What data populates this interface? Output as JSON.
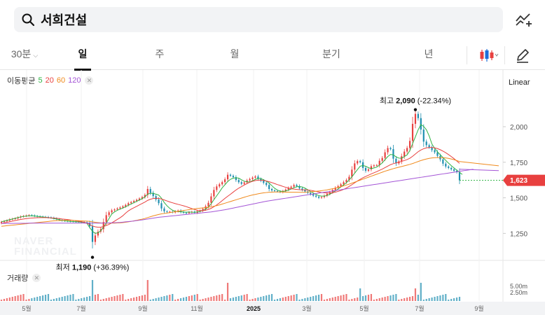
{
  "search": {
    "query": "서희건설"
  },
  "tabs": [
    {
      "label": "30분",
      "has_chevron": true
    },
    {
      "label": "일",
      "active": true
    },
    {
      "label": "주"
    },
    {
      "label": "월"
    },
    {
      "label": "분기"
    },
    {
      "label": "년"
    }
  ],
  "moving_average": {
    "label": "이동평균",
    "periods": [
      {
        "value": "5",
        "color": "#2fb344"
      },
      {
        "value": "20",
        "color": "#e8403f"
      },
      {
        "value": "60",
        "color": "#f08a1c"
      },
      {
        "value": "120",
        "color": "#a455d6"
      }
    ]
  },
  "scale_mode": "Linear",
  "volume": {
    "label": "거래량",
    "axis_labels": [
      "5.00m",
      "2.50m"
    ]
  },
  "watermark": [
    "NAVER",
    "FINANCIAL"
  ],
  "chart_data": {
    "type": "candlestick",
    "x_ticks": [
      "5월",
      "7월",
      "9월",
      "11월",
      "2025",
      "3월",
      "5월",
      "7월",
      "9월"
    ],
    "y_ticks": [
      2000,
      1750,
      1500,
      1250
    ],
    "y_tick_labels": [
      "2,000",
      "1,750",
      "1,500",
      "1,250"
    ],
    "ylim": [
      1060,
      2300
    ],
    "current_price": 1623,
    "current_price_label": "1,623",
    "high": {
      "label": "최고",
      "value": "2,090",
      "change": "(-22.34%)",
      "price": 2090
    },
    "low": {
      "label": "최저",
      "value": "1,190",
      "change": "(+36.39%)",
      "price": 1190
    },
    "colors": {
      "up": "#e8403f",
      "down": "#1e8fb0",
      "current": "#e8403f"
    },
    "close": [
      1330,
      1335,
      1340,
      1348,
      1352,
      1355,
      1362,
      1368,
      1372,
      1375,
      1378,
      1376,
      1372,
      1370,
      1368,
      1366,
      1365,
      1362,
      1360,
      1355,
      1350,
      1345,
      1340,
      1338,
      1336,
      1335,
      1334,
      1333,
      1332,
      1330,
      1328,
      1325,
      1300,
      1190,
      1235,
      1262,
      1280,
      1330,
      1378,
      1398,
      1412,
      1418,
      1425,
      1432,
      1440,
      1450,
      1462,
      1470,
      1478,
      1486,
      1495,
      1505,
      1520,
      1562,
      1535,
      1512,
      1488,
      1462,
      1425,
      1405,
      1400,
      1402,
      1398,
      1405,
      1410,
      1400,
      1395,
      1392,
      1398,
      1402,
      1395,
      1405,
      1410,
      1422,
      1440,
      1465,
      1510,
      1555,
      1580,
      1595,
      1610,
      1630,
      1662,
      1655,
      1645,
      1625,
      1610,
      1598,
      1608,
      1622,
      1632,
      1642,
      1650,
      1632,
      1620,
      1605,
      1590,
      1562,
      1552,
      1548,
      1545,
      1540,
      1548,
      1558,
      1570,
      1578,
      1590,
      1582,
      1566,
      1555,
      1545,
      1535,
      1525,
      1515,
      1508,
      1500,
      1505,
      1515,
      1528,
      1540,
      1555,
      1570,
      1582,
      1595,
      1610,
      1625,
      1648,
      1698,
      1742,
      1758,
      1750,
      1710,
      1690,
      1700,
      1722,
      1728,
      1730,
      1760,
      1780,
      1820,
      1850,
      1842,
      1775,
      1742,
      1756,
      1792,
      1825,
      1850,
      1900,
      2020,
      2090,
      2060,
      1980,
      1895,
      1870,
      1855,
      1835,
      1820,
      1795,
      1770,
      1740,
      1720,
      1710,
      1700,
      1690,
      1680,
      1623
    ],
    "ma5": [
      1332,
      1336,
      1341,
      1346,
      1351,
      1356,
      1361,
      1366,
      1369,
      1371,
      1373,
      1373,
      1372,
      1370,
      1367,
      1365,
      1363,
      1361,
      1358,
      1354,
      1350,
      1346,
      1341,
      1338,
      1336,
      1334,
      1333,
      1332,
      1331,
      1329,
      1327,
      1320,
      1290,
      1265,
      1250,
      1254,
      1268,
      1295,
      1322,
      1354,
      1386,
      1401,
      1412,
      1420,
      1428,
      1437,
      1447,
      1456,
      1466,
      1475,
      1485,
      1494,
      1506,
      1526,
      1532,
      1531,
      1526,
      1519,
      1497,
      1467,
      1444,
      1426,
      1413,
      1405,
      1403,
      1402,
      1400,
      1399,
      1400,
      1398,
      1399,
      1401,
      1404,
      1411,
      1420,
      1435,
      1458,
      1487,
      1514,
      1541,
      1570,
      1592,
      1614,
      1630,
      1638,
      1641,
      1638,
      1627,
      1617,
      1612,
      1612,
      1620,
      1629,
      1637,
      1636,
      1627,
      1617,
      1604,
      1585,
      1567,
      1555,
      1547,
      1545,
      1548,
      1554,
      1562,
      1571,
      1578,
      1580,
      1576,
      1568,
      1557,
      1545,
      1534,
      1524,
      1515,
      1512,
      1512,
      1516,
      1525,
      1537,
      1549,
      1562,
      1577,
      1591,
      1606,
      1625,
      1647,
      1673,
      1698,
      1722,
      1727,
      1722,
      1712,
      1705,
      1710,
      1716,
      1730,
      1745,
      1768,
      1790,
      1805,
      1802,
      1788,
      1779,
      1778,
      1790,
      1802,
      1832,
      1881,
      1929,
      1978,
      2015,
      2002,
      1978,
      1935,
      1878,
      1848,
      1823,
      1803,
      1783,
      1763,
      1744,
      1726,
      1710,
      1694,
      1680,
      1664
    ],
    "ma20": [
      1320,
      1324,
      1328,
      1332,
      1336,
      1340,
      1344,
      1348,
      1351,
      1354,
      1356,
      1358,
      1359,
      1360,
      1361,
      1361,
      1361,
      1360,
      1359,
      1358,
      1356,
      1354,
      1351,
      1349,
      1347,
      1344,
      1341,
      1338,
      1335,
      1332,
      1328,
      1322,
      1312,
      1302,
      1296,
      1293,
      1293,
      1298,
      1305,
      1313,
      1324,
      1336,
      1348,
      1360,
      1374,
      1392,
      1408,
      1420,
      1430,
      1440,
      1450,
      1460,
      1470,
      1482,
      1490,
      1495,
      1497,
      1496,
      1491,
      1485,
      1478,
      1471,
      1465,
      1459,
      1454,
      1449,
      1444,
      1438,
      1431,
      1424,
      1418,
      1412,
      1410,
      1410,
      1413,
      1418,
      1426,
      1437,
      1450,
      1464,
      1480,
      1496,
      1511,
      1525,
      1540,
      1555,
      1568,
      1579,
      1590,
      1600,
      1609,
      1616,
      1621,
      1624,
      1624,
      1622,
      1618,
      1613,
      1607,
      1600,
      1593,
      1587,
      1580,
      1574,
      1569,
      1564,
      1561,
      1559,
      1557,
      1556,
      1556,
      1555,
      1553,
      1549,
      1545,
      1541,
      1537,
      1535,
      1534,
      1534,
      1536,
      1540,
      1545,
      1551,
      1559,
      1569,
      1580,
      1592,
      1605,
      1618,
      1630,
      1641,
      1650,
      1659,
      1668,
      1676,
      1684,
      1693,
      1702,
      1712,
      1723,
      1733,
      1740,
      1745,
      1750,
      1756,
      1762,
      1769,
      1778,
      1792,
      1808,
      1824,
      1836,
      1845,
      1851,
      1854,
      1854,
      1851,
      1846,
      1838,
      1828,
      1817,
      1804,
      1790,
      1775,
      1759,
      1742
    ],
    "ma60": [
      1300,
      1302,
      1304,
      1306,
      1308,
      1310,
      1312,
      1314,
      1316,
      1318,
      1320,
      1322,
      1324,
      1326,
      1328,
      1330,
      1332,
      1334,
      1336,
      1338,
      1339,
      1340,
      1341,
      1342,
      1342,
      1342,
      1341,
      1340,
      1339,
      1338,
      1337,
      1336,
      1334,
      1331,
      1328,
      1326,
      1324,
      1323,
      1322,
      1322,
      1322,
      1322,
      1323,
      1324,
      1326,
      1328,
      1331,
      1334,
      1338,
      1342,
      1346,
      1350,
      1355,
      1361,
      1367,
      1373,
      1378,
      1383,
      1387,
      1390,
      1393,
      1396,
      1399,
      1402,
      1405,
      1408,
      1411,
      1414,
      1417,
      1420,
      1423,
      1425,
      1427,
      1429,
      1431,
      1434,
      1437,
      1441,
      1445,
      1450,
      1456,
      1462,
      1468,
      1474,
      1480,
      1486,
      1492,
      1498,
      1504,
      1510,
      1515,
      1520,
      1524,
      1528,
      1532,
      1535,
      1537,
      1539,
      1540,
      1541,
      1541,
      1541,
      1541,
      1540,
      1540,
      1539,
      1539,
      1539,
      1539,
      1539,
      1540,
      1541,
      1542,
      1544,
      1546,
      1548,
      1550,
      1553,
      1556,
      1560,
      1564,
      1568,
      1573,
      1578,
      1584,
      1590,
      1596,
      1603,
      1610,
      1617,
      1624,
      1631,
      1638,
      1645,
      1652,
      1659,
      1666,
      1673,
      1680,
      1687,
      1693,
      1699,
      1705,
      1710,
      1715,
      1720,
      1725,
      1730,
      1735,
      1741,
      1748,
      1755,
      1762,
      1768,
      1773,
      1777,
      1780,
      1782,
      1783,
      1783,
      1782,
      1780,
      1777,
      1773,
      1768,
      1762,
      1755
    ],
    "ma120": [
      1320,
      1320,
      1320,
      1320,
      1320,
      1321,
      1321,
      1321,
      1321,
      1321,
      1322,
      1322,
      1322,
      1322,
      1322,
      1322,
      1322,
      1322,
      1322,
      1322,
      1322,
      1322,
      1322,
      1322,
      1322,
      1322,
      1322,
      1322,
      1322,
      1322,
      1322,
      1322,
      1322,
      1322,
      1322,
      1322,
      1322,
      1322,
      1323,
      1323,
      1324,
      1325,
      1326,
      1327,
      1329,
      1331,
      1333,
      1335,
      1337,
      1340,
      1342,
      1345,
      1348,
      1351,
      1354,
      1357,
      1360,
      1363,
      1365,
      1367,
      1369,
      1371,
      1373,
      1375,
      1377,
      1379,
      1381,
      1383,
      1385,
      1387,
      1389,
      1391,
      1393,
      1395,
      1397,
      1399,
      1401,
      1404,
      1407,
      1410,
      1413,
      1416,
      1420,
      1424,
      1428,
      1432,
      1436,
      1440,
      1444,
      1448,
      1452,
      1456,
      1460,
      1464,
      1468,
      1472,
      1476,
      1479,
      1482,
      1485,
      1488,
      1491,
      1494,
      1497,
      1500,
      1503,
      1506,
      1509,
      1512,
      1515,
      1518,
      1521,
      1524,
      1527,
      1530,
      1533,
      1536,
      1539,
      1542,
      1545,
      1548,
      1551,
      1554,
      1557,
      1560,
      1563,
      1566,
      1569,
      1572,
      1575,
      1578,
      1581,
      1584,
      1587,
      1590,
      1593,
      1596,
      1599,
      1602,
      1605,
      1608,
      1611,
      1614,
      1617,
      1620,
      1623,
      1626,
      1629,
      1632,
      1635,
      1638,
      1641,
      1644,
      1647,
      1650,
      1653,
      1656,
      1659,
      1662,
      1665,
      1668,
      1671,
      1674,
      1677,
      1680,
      1683,
      1686,
      1689,
      1692,
      1695,
      1698,
      1701
    ]
  }
}
